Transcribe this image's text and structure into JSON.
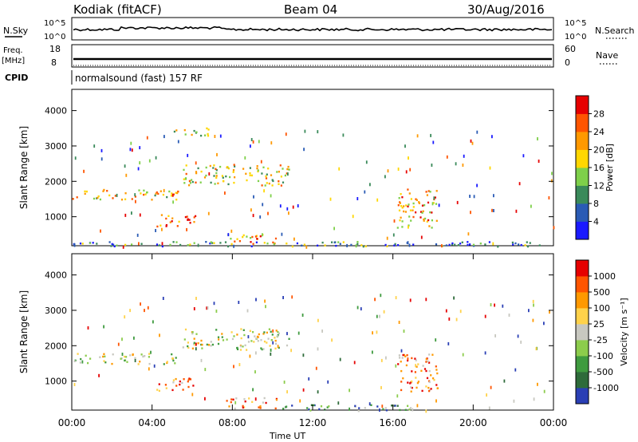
{
  "header": {
    "radar": "Kodiak (fitACF)",
    "beam": "Beam 04",
    "date": "30/Aug/2016"
  },
  "noise_panel": {
    "left_label": "N.Sky",
    "right_label": "N.Search",
    "left_ticks": [
      "10^5",
      "10^0"
    ],
    "right_ticks": [
      "10^5",
      "10^0"
    ]
  },
  "freq_panel": {
    "left_label_1": "Freq.",
    "left_label_2": "[MHz]",
    "left_ticks": [
      "18",
      "8"
    ],
    "right_label": "Nave",
    "right_ticks": [
      "60",
      "0"
    ],
    "cpid_label": "CPID",
    "cpid_value": "normalsound (fast) 157 RF"
  },
  "chart_data": [
    {
      "type": "heatmap",
      "name": "",
      "ylabel": "Slant Range [km]",
      "xlim": [
        "00:00",
        "24:00"
      ],
      "ylim": [
        180,
        4600
      ],
      "yticks": [
        "1000",
        "2000",
        "3000",
        "4000"
      ],
      "colorbar": {
        "label": "Power [dB]",
        "ticks": [
          "4",
          "8",
          "12",
          "16",
          "20",
          "24",
          "28"
        ],
        "colors": [
          "#1a1aff",
          "#2a5bb5",
          "#3a8a5a",
          "#7ed04a",
          "#ffd700",
          "#ff9900",
          "#ff5500",
          "#e60000"
        ]
      },
      "regions": [
        {
          "t0": 0.0,
          "t1": 5.3,
          "r0": 1500,
          "r1": 1800,
          "level": 0.6
        },
        {
          "t0": 5.5,
          "t1": 10.8,
          "r0": 1900,
          "r1": 2500,
          "level": 0.55
        },
        {
          "t0": 4.9,
          "t1": 6.9,
          "r0": 3300,
          "r1": 3550,
          "level": 0.4
        },
        {
          "t0": 4.2,
          "t1": 6.3,
          "r0": 750,
          "r1": 1100,
          "level": 0.8
        },
        {
          "t0": 7.6,
          "t1": 10.3,
          "r0": 250,
          "r1": 550,
          "level": 0.75
        },
        {
          "t0": 16.2,
          "t1": 18.2,
          "r0": 700,
          "r1": 1800,
          "level": 0.65
        },
        {
          "t0": 0.0,
          "t1": 24.0,
          "r0": 180,
          "r1": 320,
          "level": 0.3
        }
      ]
    },
    {
      "type": "heatmap",
      "name": "",
      "xlabel": "Time UT",
      "ylabel": "Slant Range [km]",
      "xlim": [
        "00:00",
        "24:00"
      ],
      "xticks": [
        "00:00",
        "04:00",
        "08:00",
        "12:00",
        "16:00",
        "20:00",
        "00:00"
      ],
      "ylim": [
        180,
        4600
      ],
      "yticks": [
        "1000",
        "2000",
        "3000",
        "4000"
      ],
      "colorbar": {
        "label": "Velocity [m s⁻¹]",
        "ticks": [
          "1000",
          "500",
          "100",
          "25",
          "-25",
          "-100",
          "-500",
          "-1000"
        ],
        "colors": [
          "#2a3fb5",
          "#2e6b3a",
          "#3f9b3f",
          "#8ccc4c",
          "#c8c8c0",
          "#ffd24a",
          "#ff9900",
          "#ff5500",
          "#e60000"
        ]
      },
      "regions": [
        {
          "t0": 0.0,
          "t1": 5.3,
          "r0": 1500,
          "r1": 1800,
          "level": 0.5
        },
        {
          "t0": 5.5,
          "t1": 10.8,
          "r0": 1900,
          "r1": 2500,
          "level": 0.5
        },
        {
          "t0": 4.2,
          "t1": 6.3,
          "r0": 750,
          "r1": 1100,
          "level": 0.75
        },
        {
          "t0": 7.6,
          "t1": 10.3,
          "r0": 250,
          "r1": 550,
          "level": 0.7
        },
        {
          "t0": 16.2,
          "t1": 18.2,
          "r0": 700,
          "r1": 1800,
          "level": 0.75
        },
        {
          "t0": 10.0,
          "t1": 17.0,
          "r0": 180,
          "r1": 350,
          "level": 0.25
        }
      ]
    }
  ]
}
